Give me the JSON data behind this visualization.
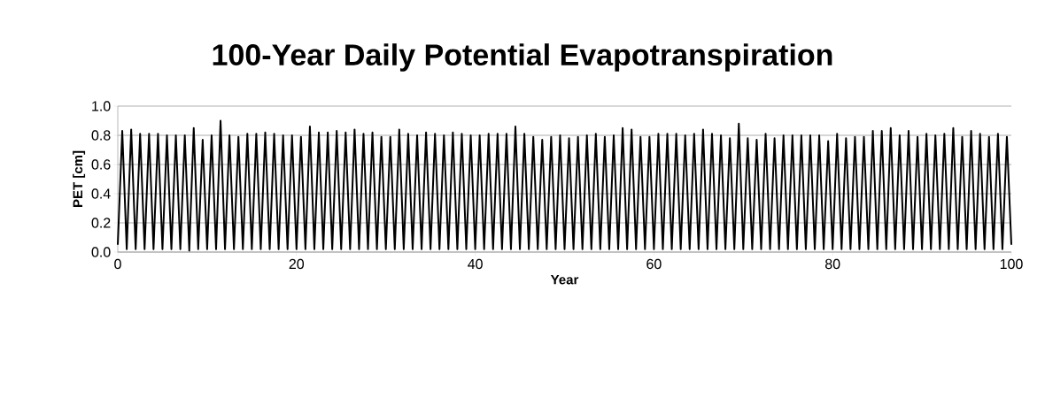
{
  "chart_data": {
    "type": "line",
    "title": "100-Year Daily Potential Evapotranspiration",
    "xlabel": "Year",
    "ylabel": "PET [cm]",
    "xlim": [
      0,
      100
    ],
    "xticks": [
      0,
      20,
      40,
      60,
      80,
      100
    ],
    "ylim": [
      0,
      1
    ],
    "yticks": [
      {
        "value": 0,
        "label": "0.0"
      },
      {
        "value": 0.2,
        "label": "0.2"
      },
      {
        "value": 0.4,
        "label": "0.4"
      },
      {
        "value": 0.6,
        "label": "0.6"
      },
      {
        "value": 0.8,
        "label": "0.8"
      },
      {
        "value": 1,
        "label": "1.0"
      }
    ],
    "grid": "y",
    "marker": "none",
    "line_style": "solid",
    "x": [
      0,
      0.5,
      1,
      1.5,
      2,
      2.5,
      3,
      3.5,
      4,
      4.5,
      5,
      5.5,
      6,
      6.5,
      7,
      7.5,
      8,
      8.5,
      9,
      9.5,
      10,
      10.5,
      11,
      11.5,
      12,
      12.5,
      13,
      13.5,
      14,
      14.5,
      15,
      15.5,
      16,
      16.5,
      17,
      17.5,
      18,
      18.5,
      19,
      19.5,
      20,
      20.5,
      21,
      21.5,
      22,
      22.5,
      23,
      23.5,
      24,
      24.5,
      25,
      25.5,
      26,
      26.5,
      27,
      27.5,
      28,
      28.5,
      29,
      29.5,
      30,
      30.5,
      31,
      31.5,
      32,
      32.5,
      33,
      33.5,
      34,
      34.5,
      35,
      35.5,
      36,
      36.5,
      37,
      37.5,
      38,
      38.5,
      39,
      39.5,
      40,
      40.5,
      41,
      41.5,
      42,
      42.5,
      43,
      43.5,
      44,
      44.5,
      45,
      45.5,
      46,
      46.5,
      47,
      47.5,
      48,
      48.5,
      49,
      49.5,
      50,
      50.5,
      51,
      51.5,
      52,
      52.5,
      53,
      53.5,
      54,
      54.5,
      55,
      55.5,
      56,
      56.5,
      57,
      57.5,
      58,
      58.5,
      59,
      59.5,
      60,
      60.5,
      61,
      61.5,
      62,
      62.5,
      63,
      63.5,
      64,
      64.5,
      65,
      65.5,
      66,
      66.5,
      67,
      67.5,
      68,
      68.5,
      69,
      69.5,
      70,
      70.5,
      71,
      71.5,
      72,
      72.5,
      73,
      73.5,
      74,
      74.5,
      75,
      75.5,
      76,
      76.5,
      77,
      77.5,
      78,
      78.5,
      79,
      79.5,
      80,
      80.5,
      81,
      81.5,
      82,
      82.5,
      83,
      83.5,
      84,
      84.5,
      85,
      85.5,
      86,
      86.5,
      87,
      87.5,
      88,
      88.5,
      89,
      89.5,
      90,
      90.5,
      91,
      91.5,
      92,
      92.5,
      93,
      93.5,
      94,
      94.5,
      95,
      95.5,
      96,
      96.5,
      97,
      97.5,
      98,
      98.5,
      99,
      99.5,
      100
    ],
    "series": [
      {
        "color": "#000000",
        "values": [
          0.05,
          0.83,
          0.02,
          0.84,
          0.02,
          0.81,
          0.02,
          0.81,
          0.02,
          0.81,
          0.02,
          0.8,
          0.02,
          0.8,
          0.02,
          0.8,
          0.01,
          0.85,
          0.02,
          0.77,
          0.02,
          0.8,
          0.02,
          0.9,
          0.02,
          0.8,
          0.02,
          0.79,
          0.02,
          0.81,
          0.02,
          0.81,
          0.02,
          0.82,
          0.02,
          0.81,
          0.02,
          0.8,
          0.02,
          0.8,
          0.02,
          0.79,
          0.02,
          0.86,
          0.02,
          0.82,
          0.02,
          0.82,
          0.02,
          0.83,
          0.02,
          0.82,
          0.02,
          0.84,
          0.02,
          0.81,
          0.02,
          0.82,
          0.02,
          0.79,
          0.02,
          0.79,
          0.02,
          0.84,
          0.02,
          0.81,
          0.02,
          0.8,
          0.02,
          0.82,
          0.02,
          0.81,
          0.02,
          0.8,
          0.02,
          0.82,
          0.02,
          0.81,
          0.02,
          0.8,
          0.02,
          0.8,
          0.02,
          0.81,
          0.02,
          0.81,
          0.02,
          0.81,
          0.02,
          0.86,
          0.02,
          0.81,
          0.02,
          0.79,
          0.02,
          0.77,
          0.02,
          0.79,
          0.02,
          0.8,
          0.02,
          0.78,
          0.02,
          0.79,
          0.02,
          0.8,
          0.02,
          0.81,
          0.02,
          0.79,
          0.02,
          0.8,
          0.02,
          0.85,
          0.02,
          0.84,
          0.02,
          0.79,
          0.02,
          0.79,
          0.02,
          0.81,
          0.02,
          0.81,
          0.02,
          0.81,
          0.02,
          0.8,
          0.02,
          0.81,
          0.02,
          0.84,
          0.02,
          0.81,
          0.02,
          0.8,
          0.02,
          0.78,
          0.02,
          0.88,
          0.02,
          0.78,
          0.02,
          0.77,
          0.02,
          0.81,
          0.02,
          0.78,
          0.02,
          0.8,
          0.02,
          0.8,
          0.02,
          0.8,
          0.02,
          0.8,
          0.02,
          0.8,
          0.02,
          0.76,
          0.02,
          0.81,
          0.02,
          0.78,
          0.02,
          0.79,
          0.02,
          0.79,
          0.02,
          0.83,
          0.02,
          0.83,
          0.02,
          0.85,
          0.02,
          0.8,
          0.02,
          0.83,
          0.02,
          0.79,
          0.02,
          0.81,
          0.02,
          0.8,
          0.02,
          0.81,
          0.02,
          0.85,
          0.02,
          0.79,
          0.02,
          0.83,
          0.02,
          0.81,
          0.02,
          0.79,
          0.02,
          0.81,
          0.02,
          0.79,
          0.05
        ]
      }
    ]
  }
}
